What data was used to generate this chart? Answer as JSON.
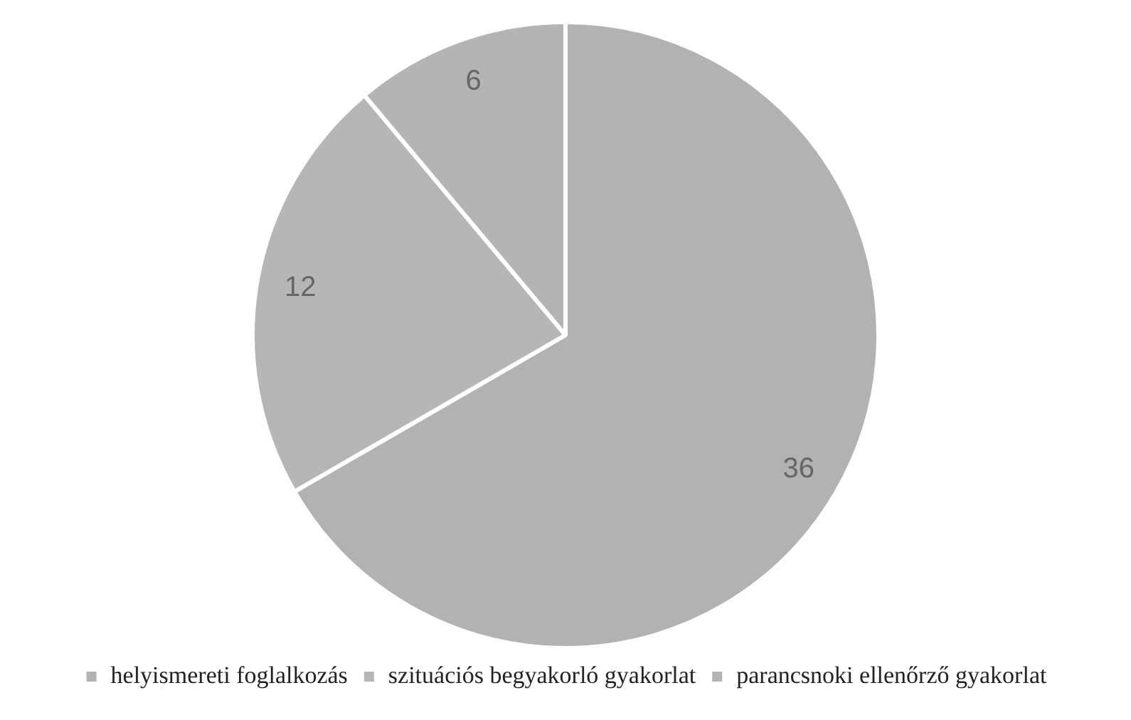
{
  "chart_data": {
    "type": "pie",
    "categories": [
      "helyismereti foglalkozás",
      "szituációs begyakorló gyakorlat",
      "parancsnoki ellenőrző gyakorlat"
    ],
    "values": [
      36,
      12,
      6
    ],
    "colors": [
      "#b2b2b2",
      "#b6b6b6",
      "#b4b4b4"
    ],
    "data_labels": true,
    "legend": "bottom"
  }
}
